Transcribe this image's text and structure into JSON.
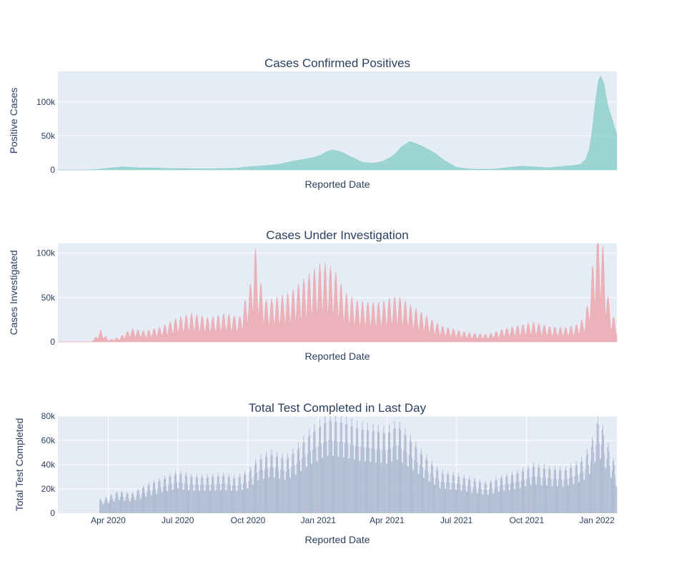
{
  "chart_data": [
    {
      "type": "area",
      "title": "Cases Confirmed Positives",
      "xlabel": "Reported Date",
      "ylabel": "Positive Cases",
      "ylim": [
        0,
        145000
      ],
      "yticks": [
        0,
        50000,
        100000
      ],
      "ytick_labels": [
        "0",
        "50k",
        "100k"
      ],
      "color": "#7ecac6",
      "series": [
        {
          "x": [
            "2020-01-26",
            "2020-03-01",
            "2020-03-15",
            "2020-04-01",
            "2020-04-20",
            "2020-05-10",
            "2020-06-01",
            "2020-06-20",
            "2020-07-15",
            "2020-08-15",
            "2020-09-15",
            "2020-10-01",
            "2020-10-20",
            "2020-11-10",
            "2020-11-25",
            "2020-12-10",
            "2020-12-25",
            "2021-01-05",
            "2021-01-12",
            "2021-01-20",
            "2021-02-01",
            "2021-02-15",
            "2021-03-01",
            "2021-03-15",
            "2021-03-25",
            "2021-04-05",
            "2021-04-12",
            "2021-04-20",
            "2021-05-01",
            "2021-05-15",
            "2021-06-01",
            "2021-06-15",
            "2021-07-01",
            "2021-07-15",
            "2021-08-01",
            "2021-08-20",
            "2021-09-10",
            "2021-09-25",
            "2021-10-10",
            "2021-10-30",
            "2021-11-15",
            "2021-12-01",
            "2021-12-10",
            "2021-12-17",
            "2021-12-22",
            "2021-12-26",
            "2021-12-30",
            "2022-01-03",
            "2022-01-06",
            "2022-01-10",
            "2022-01-15",
            "2022-01-20",
            "2022-01-27"
          ],
          "values": [
            0,
            0,
            500,
            2500,
            4500,
            3000,
            3000,
            2000,
            1800,
            1500,
            2500,
            4500,
            6000,
            8000,
            12000,
            15000,
            18000,
            22000,
            27000,
            29500,
            26000,
            18000,
            11000,
            10000,
            12000,
            18000,
            24000,
            34000,
            42000,
            36000,
            26000,
            14000,
            4000,
            1500,
            800,
            1200,
            4000,
            5500,
            4500,
            3000,
            5000,
            6500,
            8000,
            15000,
            30000,
            60000,
            100000,
            132000,
            138000,
            128000,
            95000,
            78000,
            52000
          ]
        }
      ]
    },
    {
      "type": "area",
      "title": "Cases Under Investigation",
      "xlabel": "Reported Date",
      "ylabel": "Cases Investigated",
      "ylim": [
        0,
        111000
      ],
      "yticks": [
        0,
        50000,
        100000
      ],
      "ytick_labels": [
        "0",
        "50k",
        "100k"
      ],
      "color": "#ee9ba0",
      "weekly_swing": 0.45,
      "series": [
        {
          "x": [
            "2020-01-26",
            "2020-02-27",
            "2020-03-09",
            "2020-03-15",
            "2020-03-22",
            "2020-04-01",
            "2020-04-15",
            "2020-05-01",
            "2020-05-20",
            "2020-06-10",
            "2020-07-01",
            "2020-07-20",
            "2020-08-10",
            "2020-09-01",
            "2020-09-20",
            "2020-09-28",
            "2020-10-05",
            "2020-10-10",
            "2020-10-15",
            "2020-10-25",
            "2020-11-05",
            "2020-11-25",
            "2020-12-10",
            "2020-12-25",
            "2021-01-05",
            "2021-01-15",
            "2021-01-25",
            "2021-02-05",
            "2021-02-20",
            "2021-03-10",
            "2021-03-25",
            "2021-04-05",
            "2021-04-15",
            "2021-05-01",
            "2021-05-20",
            "2021-06-10",
            "2021-07-01",
            "2021-07-20",
            "2021-08-10",
            "2021-09-01",
            "2021-09-20",
            "2021-10-10",
            "2021-11-01",
            "2021-11-20",
            "2021-12-05",
            "2021-12-15",
            "2021-12-20",
            "2021-12-25",
            "2021-12-30",
            "2022-01-03",
            "2022-01-07",
            "2022-01-11",
            "2022-01-16",
            "2022-01-21",
            "2022-01-27"
          ],
          "values": [
            0,
            0,
            0,
            4000,
            11000,
            2000,
            4000,
            12000,
            10000,
            14000,
            22000,
            26000,
            22000,
            26000,
            23000,
            40000,
            55000,
            90000,
            60000,
            38000,
            40000,
            45000,
            55000,
            65000,
            72000,
            70000,
            62000,
            45000,
            38000,
            36000,
            36000,
            40000,
            42000,
            34000,
            25000,
            15000,
            11000,
            8000,
            7000,
            12000,
            15000,
            18000,
            14000,
            13000,
            16000,
            22000,
            35000,
            62000,
            95000,
            104000,
            102000,
            72000,
            40000,
            25000,
            18000
          ]
        }
      ]
    },
    {
      "type": "bar",
      "title": "Total Test Completed in Last Day",
      "xlabel": "Reported Date",
      "ylabel": "Total Test Completed",
      "ylim": [
        0,
        80000
      ],
      "yticks": [
        0,
        20000,
        40000,
        60000,
        80000
      ],
      "ytick_labels": [
        "0",
        "20k",
        "40k",
        "60k",
        "80k"
      ],
      "color": "#a3b0c8",
      "weekly_swing": 0.3,
      "xticks": [
        "2020-04-01",
        "2020-07-01",
        "2020-10-01",
        "2021-01-01",
        "2021-04-01",
        "2021-07-01",
        "2021-10-01",
        "2022-01-01"
      ],
      "xtick_labels": [
        "Apr 2020",
        "Jul 2020",
        "Oct 2020",
        "Jan 2021",
        "Apr 2021",
        "Jul 2021",
        "Oct 2021",
        "Jan 2022"
      ],
      "series": [
        {
          "x": [
            "2020-03-21",
            "2020-04-01",
            "2020-04-15",
            "2020-05-01",
            "2020-05-20",
            "2020-06-10",
            "2020-07-01",
            "2020-07-20",
            "2020-08-10",
            "2020-09-01",
            "2020-09-15",
            "2020-10-01",
            "2020-10-15",
            "2020-11-01",
            "2020-11-20",
            "2020-12-05",
            "2020-12-20",
            "2021-01-05",
            "2021-01-15",
            "2021-02-01",
            "2021-02-20",
            "2021-03-10",
            "2021-04-01",
            "2021-04-15",
            "2021-05-01",
            "2021-05-20",
            "2021-06-10",
            "2021-07-01",
            "2021-07-20",
            "2021-08-10",
            "2021-09-01",
            "2021-09-20",
            "2021-10-10",
            "2021-11-01",
            "2021-11-20",
            "2021-12-05",
            "2021-12-15",
            "2021-12-25",
            "2022-01-01",
            "2022-01-07",
            "2022-01-12",
            "2022-01-18",
            "2022-01-27"
          ],
          "values": [
            10000,
            12000,
            16000,
            14000,
            20000,
            25000,
            30000,
            27000,
            27000,
            28000,
            26000,
            30000,
            40000,
            44000,
            40000,
            48000,
            58000,
            66000,
            70000,
            68000,
            64000,
            62000,
            60000,
            65000,
            55000,
            42000,
            30000,
            28000,
            25000,
            22000,
            27000,
            30000,
            35000,
            33000,
            32000,
            36000,
            40000,
            50000,
            68000,
            65000,
            55000,
            45000,
            32000
          ]
        }
      ]
    }
  ]
}
